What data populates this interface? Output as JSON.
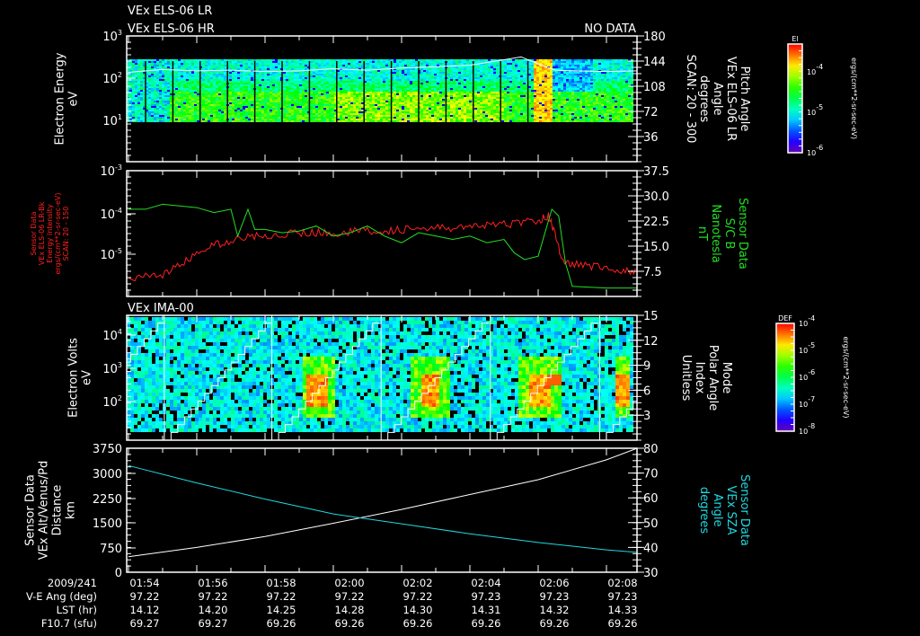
{
  "header": {
    "line1": "VEx ELS-06 LR",
    "line2": "VEx ELS-06 HR",
    "status": "NO DATA",
    "ima_title": "VEx IMA-00"
  },
  "colors": {
    "red": "#ff2020",
    "green": "#22e022",
    "cyan": "#20d8e0",
    "white": "#ffffff"
  },
  "chart_data": [
    {
      "type": "heatmap",
      "ylabel": [
        "Electron Energy",
        "eV"
      ],
      "yticks": [
        "10^3",
        "10^2",
        "10^1"
      ],
      "ylim_log": [
        0.05,
        3
      ],
      "right_label": [
        "Pitch Angle",
        "VEx ELS-06 LR",
        "Angle",
        "degrees",
        "SCAN: 20 - 300"
      ],
      "right_ticks": [
        "180",
        "144",
        "108",
        "72",
        "36"
      ],
      "right_lim": [
        0,
        180
      ],
      "colorbar": {
        "title": "El",
        "ticks": [
          "10^-4",
          "10^-5",
          "10^-6"
        ],
        "units": "ergs/(cm**2-sr-sec-eV)"
      },
      "pitch_angle_line": {
        "t_min": [
          0,
          1,
          2,
          3,
          4,
          5,
          6,
          7,
          8,
          9,
          10,
          11,
          11.5,
          12,
          12.5,
          13,
          14,
          14.9
        ],
        "deg": [
          128,
          132,
          130,
          131,
          129,
          130,
          133,
          131,
          134,
          136,
          138,
          146,
          150,
          140,
          131,
          130,
          129,
          130
        ]
      }
    },
    {
      "type": "line",
      "ylabel": [
        "Sensor Data",
        "VEx ELS-06 LR-Bk",
        "Energy Intensity",
        "ergs/(cm**2-sr-sec-eV)",
        "SCAN: 20 - 150"
      ],
      "yticks": [
        "10^-3",
        "10^-4",
        "10^-5"
      ],
      "ylim_log": [
        -6.04,
        -3
      ],
      "right_label": [
        "Sensor Data",
        "S/C B",
        "Nanotesla",
        "nT"
      ],
      "right_ticks": [
        "37.5",
        "30.0",
        "22.5",
        "15.0",
        "7.5"
      ],
      "right_lim": [
        0,
        37.5
      ],
      "series": [
        {
          "name": "Energy Intensity",
          "color": "red",
          "axis": "left",
          "t_min": [
            0,
            0.5,
            1,
            1.5,
            2,
            2.5,
            3,
            3.5,
            4,
            4.5,
            5,
            5.5,
            6,
            6.5,
            7,
            7.5,
            8,
            8.5,
            9,
            9.5,
            10,
            10.5,
            11,
            11.5,
            12,
            12.3,
            12.5,
            12.7,
            13,
            13.5,
            14,
            14.5,
            14.9
          ],
          "log10": [
            -5.65,
            -5.55,
            -5.5,
            -5.3,
            -5.0,
            -4.8,
            -4.7,
            -4.6,
            -4.55,
            -4.55,
            -4.5,
            -4.5,
            -4.5,
            -4.48,
            -4.45,
            -4.45,
            -4.42,
            -4.4,
            -4.4,
            -4.38,
            -4.35,
            -4.33,
            -4.3,
            -4.25,
            -4.2,
            -4.1,
            -4.5,
            -5.2,
            -5.25,
            -5.3,
            -5.35,
            -5.45,
            -5.4
          ]
        },
        {
          "name": "S/C B",
          "color": "green",
          "axis": "right",
          "t_min": [
            0,
            0.5,
            1,
            1.5,
            2,
            2.5,
            3,
            3.2,
            3.5,
            3.7,
            4,
            4.5,
            5,
            5.5,
            6,
            6.5,
            7,
            7.5,
            8,
            8.5,
            9,
            9.5,
            10,
            10.5,
            11,
            11.3,
            11.6,
            12,
            12.2,
            12.4,
            12.6,
            12.8,
            13,
            14,
            14.9
          ],
          "nT": [
            26,
            26,
            27.5,
            27,
            26.5,
            25,
            26,
            18,
            26,
            20,
            20,
            19,
            19.5,
            21,
            18,
            19,
            21,
            18,
            16,
            19,
            18,
            17,
            18,
            16,
            17,
            13,
            11,
            12,
            19,
            26,
            24,
            10,
            3,
            2.5,
            2.5
          ]
        }
      ]
    },
    {
      "type": "heatmap",
      "title": "VEx IMA-00",
      "ylabel": [
        "Electron Volts",
        "eV"
      ],
      "yticks": [
        "10^4",
        "10^3",
        "10^2"
      ],
      "ylim_log": [
        0.9,
        4.65
      ],
      "right_label": [
        "Mode",
        "Polar Angle",
        "Index",
        "Unitless"
      ],
      "right_ticks": [
        "15",
        "12",
        "9",
        "6",
        "3"
      ],
      "right_lim": [
        0,
        15
      ],
      "scan_boundaries_min": [
        1.05,
        4.2,
        7.4,
        10.6,
        13.8
      ],
      "colorbar": {
        "title": "DEF",
        "ticks": [
          "10^-4",
          "10^-5",
          "10^-6",
          "10^-7",
          "10^-8"
        ],
        "units": "ergs/(cm**2-sr-sec-eV)"
      }
    },
    {
      "type": "line",
      "ylabel": [
        "Sensor Data",
        "VEx Alt/Venus/Pd",
        "Distance",
        "km"
      ],
      "yticks": [
        "3750",
        "3000",
        "2250",
        "1500",
        "750",
        "0"
      ],
      "ylim": [
        0,
        3750
      ],
      "right_label": [
        "Sensor Data",
        "VEx SZA",
        "Angle",
        "degrees"
      ],
      "right_ticks": [
        "80",
        "70",
        "60",
        "50",
        "40",
        "30"
      ],
      "right_lim": [
        30,
        80
      ],
      "series": [
        {
          "name": "Altitude",
          "color": "white",
          "axis": "left",
          "t_min": [
            0,
            2,
            4,
            6,
            8,
            10,
            12,
            14,
            14.9
          ],
          "km": [
            470,
            750,
            1080,
            1480,
            1900,
            2350,
            2800,
            3400,
            3750
          ]
        },
        {
          "name": "SZA",
          "color": "cyan",
          "axis": "right",
          "t_min": [
            0,
            2,
            4,
            6,
            8,
            10,
            12,
            14,
            14.9
          ],
          "deg": [
            73,
            66,
            59.5,
            53.5,
            49.5,
            45.5,
            42,
            39,
            38
          ]
        }
      ]
    }
  ],
  "time_axis": {
    "row_labels": [
      "2009/241",
      "V-E Ang (deg)",
      "LST (hr)",
      "F10.7 (sfu)"
    ],
    "columns": [
      {
        "time": "01:54",
        "ve": "97.22",
        "lst": "14.12",
        "f107": "69.27"
      },
      {
        "time": "01:56",
        "ve": "97.22",
        "lst": "14.20",
        "f107": "69.27"
      },
      {
        "time": "01:58",
        "ve": "97.22",
        "lst": "14.25",
        "f107": "69.26"
      },
      {
        "time": "02:00",
        "ve": "97.22",
        "lst": "14.28",
        "f107": "69.26"
      },
      {
        "time": "02:02",
        "ve": "97.22",
        "lst": "14.30",
        "f107": "69.26"
      },
      {
        "time": "02:04",
        "ve": "97.23",
        "lst": "14.31",
        "f107": "69.26"
      },
      {
        "time": "02:06",
        "ve": "97.23",
        "lst": "14.32",
        "f107": "69.26"
      },
      {
        "time": "02:08",
        "ve": "97.23",
        "lst": "14.33",
        "f107": "69.26"
      }
    ]
  }
}
